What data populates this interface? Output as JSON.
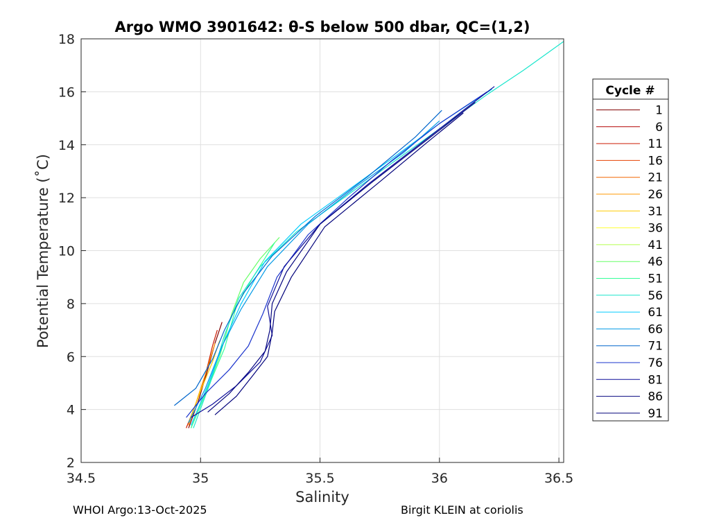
{
  "chart_data": {
    "type": "line",
    "title": "Argo WMO 3901642: θ-S below 500 dbar,  QC=(1,2)",
    "xlabel": "Salinity",
    "ylabel": "Potential Temperature (˚C)",
    "xlim": [
      34.5,
      36.52
    ],
    "ylim": [
      2,
      18
    ],
    "xticks": [
      "34.5",
      "35",
      "35.5",
      "36",
      "36.5"
    ],
    "yticks": [
      "2",
      "4",
      "6",
      "8",
      "10",
      "12",
      "14",
      "16",
      "18"
    ],
    "grid": true,
    "legend": {
      "title": "Cycle #",
      "placement": "outside-right",
      "entries": [
        {
          "label": "1",
          "color": "#800000"
        },
        {
          "label": "6",
          "color": "#b30000"
        },
        {
          "label": "11",
          "color": "#cc1a00"
        },
        {
          "label": "16",
          "color": "#e64000"
        },
        {
          "label": "21",
          "color": "#f26600"
        },
        {
          "label": "26",
          "color": "#ff9900"
        },
        {
          "label": "31",
          "color": "#ffcc00"
        },
        {
          "label": "36",
          "color": "#ffff33"
        },
        {
          "label": "41",
          "color": "#b3ff4d"
        },
        {
          "label": "46",
          "color": "#66ff66"
        },
        {
          "label": "51",
          "color": "#33ff99"
        },
        {
          "label": "56",
          "color": "#19e6cc"
        },
        {
          "label": "61",
          "color": "#00ccff"
        },
        {
          "label": "66",
          "color": "#0099e6"
        },
        {
          "label": "71",
          "color": "#0066cc"
        },
        {
          "label": "76",
          "color": "#1a33cc"
        },
        {
          "label": "81",
          "color": "#0d0d99"
        },
        {
          "label": "86",
          "color": "#050580"
        },
        {
          "label": "91",
          "color": "#00007a"
        }
      ]
    },
    "series": [
      {
        "color": "#800000",
        "x": [
          34.95,
          34.99,
          35.03,
          35.06,
          35.09
        ],
        "y": [
          3.3,
          4.3,
          5.5,
          6.5,
          7.3
        ]
      },
      {
        "color": "#cc1a00",
        "x": [
          34.94,
          34.98,
          35.02,
          35.05,
          35.07
        ],
        "y": [
          3.3,
          4.2,
          5.3,
          6.4,
          7.0
        ]
      },
      {
        "color": "#ff9900",
        "x": [
          34.95,
          34.99,
          35.03,
          35.06
        ],
        "y": [
          3.4,
          4.5,
          5.6,
          6.5
        ]
      },
      {
        "color": "#ffcc00",
        "x": [
          34.95,
          35.0,
          35.05,
          35.08
        ],
        "y": [
          3.5,
          4.7,
          5.8,
          6.6
        ]
      },
      {
        "color": "#66ff66",
        "x": [
          34.96,
          35.02,
          35.08,
          35.13,
          35.18,
          35.25,
          35.33
        ],
        "y": [
          3.3,
          4.6,
          6.0,
          7.6,
          8.8,
          9.7,
          10.5
        ]
      },
      {
        "color": "#33ff99",
        "x": [
          34.96,
          35.03,
          35.1,
          35.15,
          35.22,
          35.31
        ],
        "y": [
          3.3,
          4.8,
          6.3,
          7.9,
          9.0,
          10.3
        ]
      },
      {
        "color": "#19e6cc",
        "x": [
          34.97,
          35.04,
          35.1,
          35.16,
          35.25,
          35.4,
          35.6,
          35.8,
          36.0,
          36.2,
          36.35,
          36.52
        ],
        "y": [
          3.3,
          5.0,
          6.8,
          8.2,
          9.4,
          10.7,
          12.0,
          13.3,
          14.6,
          15.9,
          16.8,
          17.9
        ]
      },
      {
        "color": "#00ccff",
        "x": [
          34.96,
          35.03,
          35.1,
          35.17,
          35.27,
          35.42,
          35.62,
          35.82,
          36.0,
          36.22
        ],
        "y": [
          3.4,
          4.9,
          6.6,
          8.0,
          9.6,
          11.0,
          12.3,
          13.6,
          14.8,
          16.1
        ]
      },
      {
        "color": "#0099e6",
        "x": [
          34.95,
          35.02,
          35.09,
          35.17,
          35.28,
          35.45,
          35.65,
          35.85,
          36.0
        ],
        "y": [
          3.5,
          4.8,
          6.4,
          7.8,
          9.4,
          11.0,
          12.4,
          13.7,
          14.9
        ]
      },
      {
        "color": "#0066cc",
        "x": [
          34.89,
          34.98,
          35.05,
          35.1,
          35.18,
          35.3,
          35.48,
          35.7,
          35.9,
          36.01
        ],
        "y": [
          4.15,
          4.8,
          5.9,
          7.0,
          8.4,
          9.8,
          11.3,
          12.8,
          14.3,
          15.3
        ]
      },
      {
        "color": "#1a33cc",
        "x": [
          34.94,
          35.02,
          35.12,
          35.2,
          35.26,
          35.32,
          35.45,
          35.62,
          35.8,
          36.0,
          36.2
        ],
        "y": [
          3.7,
          4.6,
          5.5,
          6.4,
          7.6,
          9.0,
          10.6,
          12.0,
          13.4,
          14.8,
          16.0
        ]
      },
      {
        "color": "#0d0d99",
        "x": [
          34.96,
          35.05,
          35.15,
          35.25,
          35.3,
          35.28,
          35.35,
          35.5,
          35.7,
          35.9,
          36.1,
          36.23
        ],
        "y": [
          3.7,
          4.2,
          4.9,
          5.8,
          6.8,
          7.9,
          9.4,
          11.0,
          12.5,
          13.9,
          15.3,
          16.2
        ]
      },
      {
        "color": "#050580",
        "x": [
          35.03,
          35.12,
          35.2,
          35.27,
          35.29,
          35.3,
          35.36,
          35.5,
          35.72,
          35.95,
          36.15
        ],
        "y": [
          3.9,
          4.6,
          5.4,
          6.2,
          7.0,
          8.0,
          9.2,
          11.0,
          12.6,
          14.2,
          15.6
        ]
      },
      {
        "color": "#00007a",
        "x": [
          35.06,
          35.15,
          35.22,
          35.28,
          35.3,
          35.31,
          35.38,
          35.52,
          35.75,
          35.95,
          36.1
        ],
        "y": [
          3.8,
          4.5,
          5.3,
          6.0,
          6.9,
          7.7,
          9.0,
          10.9,
          12.6,
          14.1,
          15.2
        ]
      }
    ]
  },
  "footer": {
    "left": "WHOI Argo:13-Oct-2025",
    "right": "Birgit KLEIN at coriolis"
  }
}
